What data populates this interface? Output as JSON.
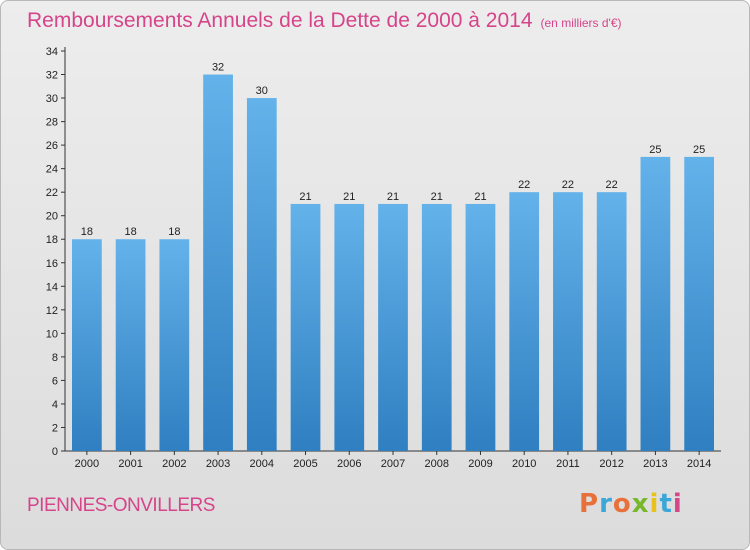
{
  "header": {
    "title": "Remboursements Annuels de la Dette de 2000 à 2014",
    "unit": "(en milliers d'€)"
  },
  "footer": {
    "commune": "PIENNES-ONVILLERS",
    "logo": "Proxiti"
  },
  "colors": {
    "bar_light": "#5aaae6",
    "bar_dark": "#2f7fc1",
    "title": "#d6448a",
    "logo": [
      "#e8703a",
      "#3aa7d8",
      "#e8703a",
      "#76b82a",
      "#e8c21c",
      "#3aa7d8",
      "#d6448a"
    ]
  },
  "chart_data": {
    "type": "bar",
    "title": "Remboursements Annuels de la Dette de 2000 à 2014",
    "ylabel": "en milliers d'€",
    "xlabel": "",
    "categories": [
      "2000",
      "2001",
      "2002",
      "2003",
      "2004",
      "2005",
      "2006",
      "2007",
      "2008",
      "2009",
      "2010",
      "2011",
      "2012",
      "2013",
      "2014"
    ],
    "values": [
      18,
      18,
      18,
      32,
      30,
      21,
      21,
      21,
      21,
      21,
      22,
      22,
      22,
      25,
      25
    ],
    "ylim": [
      0,
      34
    ],
    "yticks": [
      0,
      2,
      4,
      6,
      8,
      10,
      12,
      14,
      16,
      18,
      20,
      22,
      24,
      26,
      28,
      30,
      32,
      34
    ],
    "grid": false,
    "legend": "none"
  }
}
